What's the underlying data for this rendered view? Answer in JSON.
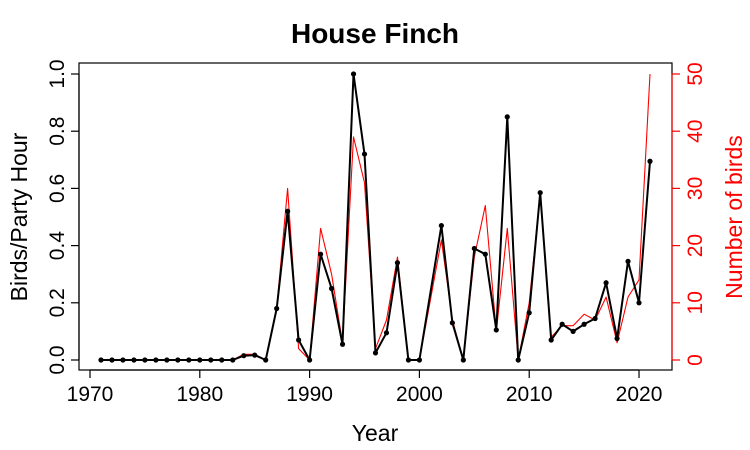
{
  "chart_data": {
    "type": "line",
    "title": "House Finch",
    "xlabel": "Year",
    "ylabel": "Birds/Party Hour",
    "y2label": "Number of birds",
    "xlim": [
      1970,
      2021
    ],
    "ylim": [
      0,
      1.0
    ],
    "y2lim": [
      0,
      50
    ],
    "x_ticks": [
      "1970",
      "1980",
      "1990",
      "2000",
      "2010",
      "2020"
    ],
    "y_ticks": [
      "0.0",
      "0.2",
      "0.4",
      "0.6",
      "0.8",
      "1.0"
    ],
    "y2_ticks": [
      "0",
      "10",
      "20",
      "30",
      "40",
      "50"
    ],
    "colors": {
      "primary": "#000000",
      "secondary": "#ff0000"
    },
    "series": [
      {
        "axis": "left",
        "color": "#000000",
        "markers": true,
        "x": [
          1971,
          1972,
          1973,
          1974,
          1975,
          1976,
          1977,
          1978,
          1979,
          1980,
          1981,
          1982,
          1983,
          1984,
          1985,
          1986,
          1987,
          1988,
          1989,
          1990,
          1991,
          1992,
          1993,
          1994,
          1995,
          1996,
          1997,
          1998,
          1999,
          2000,
          2002,
          2003,
          2004,
          2005,
          2006,
          2007,
          2008,
          2009,
          2010,
          2011,
          2012,
          2013,
          2014,
          2015,
          2016,
          2017,
          2018,
          2019,
          2020,
          2021
        ],
        "values": [
          0,
          0,
          0,
          0,
          0,
          0,
          0,
          0,
          0,
          0,
          0,
          0,
          0,
          0.015,
          0.017,
          0,
          0.18,
          0.52,
          0.07,
          0,
          0.37,
          0.25,
          0.055,
          1.0,
          0.72,
          0.025,
          0.095,
          0.34,
          0,
          0,
          0.47,
          0.13,
          0,
          0.39,
          0.37,
          0.105,
          0.85,
          0,
          0.165,
          0.585,
          0.07,
          0.125,
          0.1,
          0.125,
          0.145,
          0.27,
          0.075,
          0.345,
          0.2,
          0.695
        ]
      },
      {
        "axis": "right",
        "color": "#ff0000",
        "markers": false,
        "x": [
          1971,
          1972,
          1973,
          1974,
          1975,
          1976,
          1977,
          1978,
          1979,
          1980,
          1981,
          1982,
          1983,
          1984,
          1985,
          1986,
          1987,
          1988,
          1989,
          1990,
          1991,
          1992,
          1993,
          1994,
          1995,
          1996,
          1997,
          1998,
          1999,
          2000,
          2002,
          2003,
          2004,
          2005,
          2006,
          2007,
          2008,
          2009,
          2010,
          2011,
          2012,
          2013,
          2014,
          2015,
          2016,
          2017,
          2018,
          2019,
          2020,
          2021
        ],
        "values": [
          0,
          0,
          0,
          0,
          0,
          0,
          0,
          0,
          0,
          0,
          0,
          0,
          0,
          1,
          1,
          0,
          9,
          30,
          2,
          0,
          23,
          15,
          3,
          39,
          31,
          2,
          7,
          18,
          0,
          0,
          21,
          7,
          0,
          18,
          27,
          5,
          23,
          0,
          10,
          29,
          4,
          6,
          6,
          8,
          7,
          11,
          3,
          11,
          14,
          50
        ]
      }
    ]
  }
}
